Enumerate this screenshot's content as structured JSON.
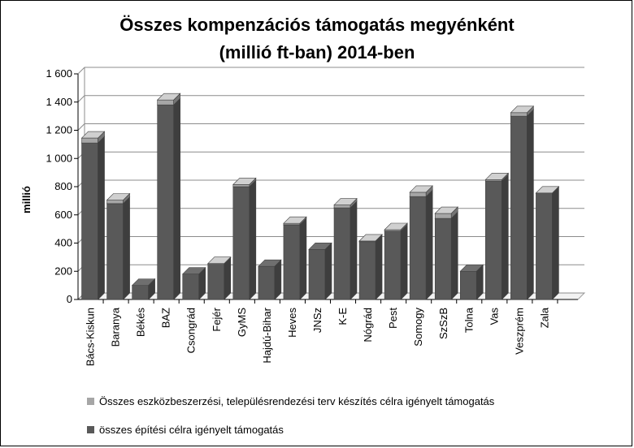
{
  "chart_data": {
    "type": "bar",
    "stacked": true,
    "title": "Összes kompenzációs támogatás megyénként",
    "subtitle": "(millió ft-ban) 2014-ben",
    "xlabel": "",
    "ylabel": "millió",
    "ylim": [
      0,
      1600
    ],
    "yticks": [
      0,
      200,
      400,
      600,
      800,
      1000,
      1200,
      1400,
      1600
    ],
    "ytick_labels": [
      "0",
      "200",
      "400",
      "600",
      "800",
      "1 000",
      "1 200",
      "1 400",
      "1 600"
    ],
    "grid": true,
    "legend_position": "bottom",
    "categories": [
      "Bács-Kiskun",
      "Baranya",
      "Békés",
      "BAZ",
      "Csongrád",
      "Fejér",
      "GyMS",
      "Hajdú-Bihar",
      "Heves",
      "JNSz",
      "K-E",
      "Nógrád",
      "Pest",
      "Somogy",
      "SzSzB",
      "Tolna",
      "Vas",
      "Veszprém",
      "Zala"
    ],
    "series": [
      {
        "name": "összes építési célra igényelt támogatás",
        "color": "#595959",
        "values": [
          1110,
          680,
          100,
          1380,
          180,
          250,
          800,
          235,
          530,
          355,
          650,
          410,
          485,
          730,
          575,
          200,
          840,
          1300,
          750
        ]
      },
      {
        "name": "Összes eszközbeszerzési, településrendezési terv készítés célra igényelt támogatás",
        "color": "#a6a6a6",
        "values": [
          35,
          25,
          0,
          35,
          0,
          5,
          15,
          0,
          10,
          0,
          20,
          5,
          10,
          30,
          35,
          0,
          10,
          25,
          5
        ]
      }
    ]
  }
}
